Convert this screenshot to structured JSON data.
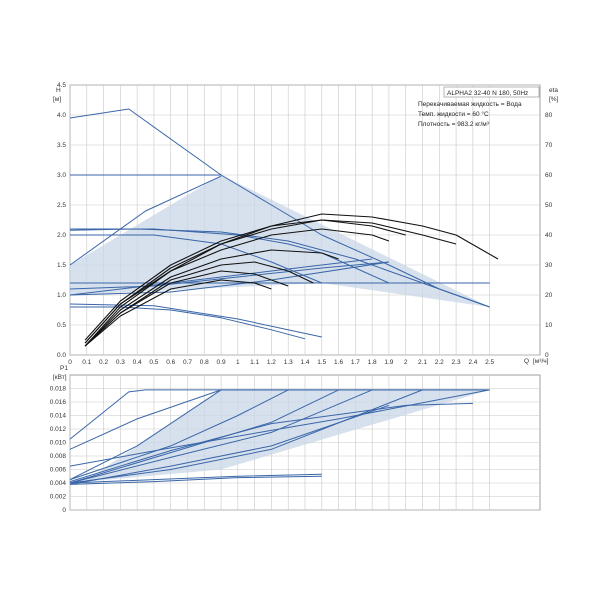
{
  "chart_data": [
    {
      "type": "line",
      "title": "ALPHA2 32-40 N 180, 50Hz",
      "notes": [
        "Перекачиваемая жидкость = Вода",
        "Темп. жидкости = 60 °C",
        "Плотность = 983.2 кг/м³"
      ],
      "ylabel": "H",
      "ylabel_unit": "[м]",
      "y2label": "eta",
      "y2label_unit": "[%]",
      "xlabel": "Q",
      "xlabel_unit": "[м³/ч]",
      "xlim": [
        0,
        2.8
      ],
      "ylim": [
        0,
        4.5
      ],
      "y2lim": [
        0,
        90
      ],
      "x_ticks": [
        "0",
        "0.1",
        "0.2",
        "0.3",
        "0.4",
        "0.5",
        "0.6",
        "0.7",
        "0.8",
        "0.9",
        "1",
        "1.1",
        "1.2",
        "1.3",
        "1.4",
        "1.5",
        "1.6",
        "1.7",
        "1.8",
        "1.9",
        "2",
        "2.1",
        "2.2",
        "2.3",
        "2.4",
        "2.5"
      ],
      "y_ticks": [
        "0.0",
        "0.5",
        "1.0",
        "1.5",
        "2.0",
        "2.5",
        "3.0",
        "3.5",
        "4.0",
        "4.5"
      ],
      "y2_ticks": [
        "0",
        "10",
        "20",
        "30",
        "40",
        "50",
        "60",
        "70",
        "80"
      ],
      "grid": true,
      "shaded_region": {
        "x": [
          0,
          0.9,
          2.5,
          1.5,
          0
        ],
        "y": [
          1.5,
          3.0,
          0.8,
          1.2,
          1.0
        ]
      },
      "series": [
        {
          "axis": "H",
          "style": "blue",
          "x": [
            0,
            0.35,
            0.45,
            0.7,
            0.9,
            1.2,
            1.5,
            1.9,
            2.2,
            2.5
          ],
          "y": [
            3.95,
            4.1,
            3.9,
            3.4,
            3.0,
            2.5,
            2.0,
            1.5,
            1.1,
            0.8
          ]
        },
        {
          "axis": "H",
          "style": "blue",
          "x": [
            0,
            0.9
          ],
          "y": [
            3.0,
            3.0
          ]
        },
        {
          "axis": "H",
          "style": "blue",
          "x": [
            0,
            0.45,
            0.9
          ],
          "y": [
            1.5,
            2.4,
            2.98
          ]
        },
        {
          "axis": "H",
          "style": "blue",
          "x": [
            0,
            0.4,
            0.9,
            1.3,
            1.7,
            2.0,
            2.3,
            2.5
          ],
          "y": [
            2.08,
            2.1,
            2.05,
            1.9,
            1.6,
            1.3,
            1.0,
            0.8
          ]
        },
        {
          "axis": "H",
          "style": "blue",
          "x": [
            0,
            0.5,
            1.0,
            1.3,
            1.5,
            1.7,
            1.9
          ],
          "y": [
            2.1,
            2.1,
            2.0,
            1.85,
            1.7,
            1.45,
            1.2
          ]
        },
        {
          "axis": "H",
          "style": "blue",
          "x": [
            0,
            0.5,
            0.9,
            1.2,
            1.5
          ],
          "y": [
            2.0,
            2.0,
            1.85,
            1.55,
            1.2
          ]
        },
        {
          "axis": "H",
          "style": "blue",
          "x": [
            0,
            1.9,
            2.5
          ],
          "y": [
            1.2,
            1.2,
            1.2
          ]
        },
        {
          "axis": "H",
          "style": "blue",
          "x": [
            0,
            0.6,
            1.2,
            1.8
          ],
          "y": [
            1.0,
            1.2,
            1.4,
            1.6
          ]
        },
        {
          "axis": "H",
          "style": "blue",
          "x": [
            0,
            0.6,
            1.2,
            1.9
          ],
          "y": [
            1.0,
            1.05,
            1.25,
            1.55
          ]
        },
        {
          "axis": "H",
          "style": "blue",
          "x": [
            0,
            0.5,
            1.0,
            1.5,
            1.9
          ],
          "y": [
            1.1,
            1.15,
            1.3,
            1.45,
            1.55
          ]
        },
        {
          "axis": "H",
          "style": "blue",
          "x": [
            0,
            0.5,
            1.0,
            1.5
          ],
          "y": [
            0.85,
            0.82,
            0.6,
            0.3
          ]
        },
        {
          "axis": "H",
          "style": "blue",
          "x": [
            0,
            0.3,
            0.6,
            0.9,
            1.2,
            1.4
          ],
          "y": [
            0.8,
            0.8,
            0.75,
            0.62,
            0.42,
            0.27
          ]
        },
        {
          "axis": "eta",
          "style": "black",
          "x": [
            0.09,
            0.3,
            0.6,
            0.9,
            1.2,
            1.5,
            1.8,
            2.1,
            2.3,
            2.55
          ],
          "y": [
            3,
            16,
            28,
            37,
            43,
            47,
            46,
            43,
            40,
            32
          ]
        },
        {
          "axis": "eta",
          "style": "black",
          "x": [
            0.09,
            0.3,
            0.6,
            0.9,
            1.2,
            1.5,
            1.8,
            2.1,
            2.3
          ],
          "y": [
            4,
            17,
            29,
            37,
            42,
            45,
            44,
            40,
            37
          ]
        },
        {
          "axis": "eta",
          "style": "black",
          "x": [
            0.09,
            0.3,
            0.6,
            0.9,
            1.2,
            1.5,
            1.8,
            2.0
          ],
          "y": [
            5,
            18,
            30,
            38,
            43,
            45,
            43,
            40
          ]
        },
        {
          "axis": "eta",
          "style": "black",
          "x": [
            0.09,
            0.3,
            0.6,
            0.9,
            1.2,
            1.5,
            1.8,
            1.9
          ],
          "y": [
            4,
            17,
            28,
            35,
            40,
            42,
            40,
            38
          ]
        },
        {
          "axis": "eta",
          "style": "black",
          "x": [
            0.09,
            0.3,
            0.6,
            0.9,
            1.2,
            1.5,
            1.6
          ],
          "y": [
            3,
            15,
            26,
            32,
            35,
            34,
            32
          ]
        },
        {
          "axis": "eta",
          "style": "black",
          "x": [
            0.09,
            0.3,
            0.6,
            0.9,
            1.1,
            1.3,
            1.45
          ],
          "y": [
            3,
            14,
            25,
            30,
            31,
            28,
            24
          ]
        },
        {
          "axis": "eta",
          "style": "black",
          "x": [
            0.09,
            0.3,
            0.6,
            0.9,
            1.1,
            1.3
          ],
          "y": [
            3,
            14,
            24,
            28,
            27,
            23
          ]
        },
        {
          "axis": "eta",
          "style": "black",
          "x": [
            0.09,
            0.3,
            0.6,
            0.9,
            1.1,
            1.2
          ],
          "y": [
            3,
            13,
            22,
            25,
            24,
            22
          ]
        }
      ]
    },
    {
      "type": "line",
      "ylabel": "P1",
      "ylabel_unit": "[кВт]",
      "xlim": [
        0,
        2.8
      ],
      "ylim": [
        0,
        0.02
      ],
      "x_ticks": [
        "0",
        "0.1",
        "0.2",
        "0.3",
        "0.4",
        "0.5",
        "0.6",
        "0.7",
        "0.8",
        "0.9",
        "1",
        "1.1",
        "1.2",
        "1.3",
        "1.4",
        "1.5",
        "1.6",
        "1.7",
        "1.8",
        "1.9",
        "2",
        "2.1",
        "2.2",
        "2.3",
        "2.4",
        "2.5"
      ],
      "y_ticks": [
        "0",
        "0.002",
        "0.004",
        "0.006",
        "0.008",
        "0.010",
        "0.012",
        "0.014",
        "0.016",
        "0.018"
      ],
      "grid": true,
      "shaded_region": {
        "x": [
          0.1,
          0.9,
          2.5,
          0.9,
          0.1
        ],
        "y": [
          0.0045,
          0.0178,
          0.0178,
          0.006,
          0.0042
        ]
      },
      "series": [
        {
          "x": [
            0,
            0.35,
            0.45,
            2.5
          ],
          "y": [
            0.0105,
            0.0175,
            0.0178,
            0.0178
          ]
        },
        {
          "x": [
            0,
            0.4,
            0.9,
            2.5
          ],
          "y": [
            0.009,
            0.0135,
            0.0178,
            0.0178
          ]
        },
        {
          "x": [
            0,
            0.4,
            0.9
          ],
          "y": [
            0.0045,
            0.0095,
            0.0178
          ]
        },
        {
          "x": [
            0,
            0.6,
            1.0,
            1.3
          ],
          "y": [
            0.0045,
            0.0095,
            0.014,
            0.0178
          ]
        },
        {
          "x": [
            0,
            0.6,
            1.2,
            1.6
          ],
          "y": [
            0.004,
            0.0085,
            0.013,
            0.0178
          ]
        },
        {
          "x": [
            0,
            0.6,
            1.2,
            1.8
          ],
          "y": [
            0.004,
            0.0078,
            0.0115,
            0.0178
          ]
        },
        {
          "x": [
            0,
            0.6,
            1.2,
            1.9
          ],
          "y": [
            0.0038,
            0.0065,
            0.0095,
            0.0155
          ]
        },
        {
          "x": [
            0,
            0.6,
            1.2,
            2.1
          ],
          "y": [
            0.004,
            0.006,
            0.009,
            0.0178
          ]
        },
        {
          "x": [
            0,
            0.6,
            1.2,
            2.0,
            2.4
          ],
          "y": [
            0.0042,
            0.0088,
            0.0128,
            0.0155,
            0.0158
          ]
        },
        {
          "x": [
            0,
            0.6,
            1.2,
            1.6,
            2.5
          ],
          "y": [
            0.0065,
            0.0092,
            0.0118,
            0.0135,
            0.0178
          ]
        },
        {
          "x": [
            0,
            0.5,
            1.0,
            1.5
          ],
          "y": [
            0.004,
            0.0045,
            0.005,
            0.0053
          ]
        },
        {
          "x": [
            0,
            0.5,
            1.0,
            1.5
          ],
          "y": [
            0.0038,
            0.0042,
            0.0048,
            0.005
          ]
        }
      ]
    }
  ]
}
